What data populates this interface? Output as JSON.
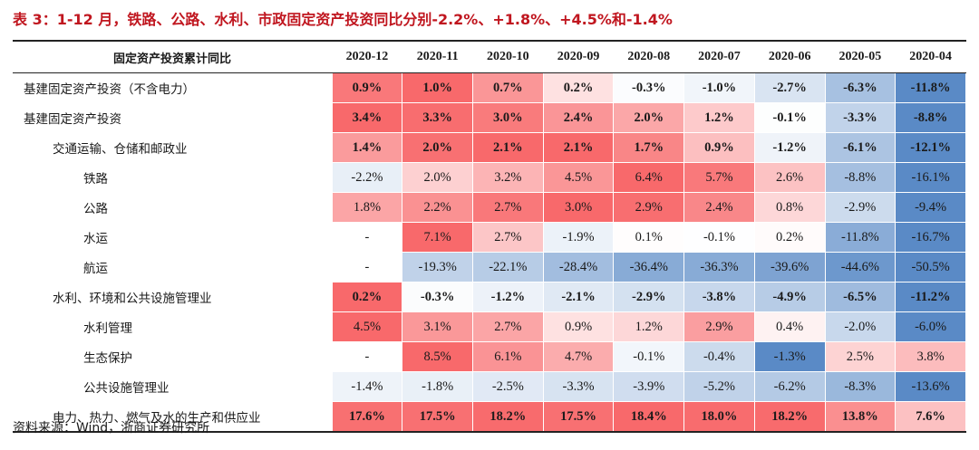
{
  "title": "表 3：1-12 月，铁路、公路、水利、市政固定资产投资同比分别-2.2%、+1.8%、+4.5%和-1.4%",
  "header_label": "固定资产投资累计同比",
  "columns": [
    "2020-12",
    "2020-11",
    "2020-10",
    "2020-09",
    "2020-08",
    "2020-07",
    "2020-06",
    "2020-05",
    "2020-04"
  ],
  "rows": [
    {
      "label": "基建固定资产投资（不含电力）",
      "indent": 0,
      "bold": true,
      "values": [
        "0.9%",
        "1.0%",
        "0.7%",
        "0.2%",
        "-0.3%",
        "-1.0%",
        "-2.7%",
        "-6.3%",
        "-11.8%"
      ],
      "nums": [
        0.9,
        1.0,
        0.7,
        0.2,
        -0.3,
        -1.0,
        -2.7,
        -6.3,
        -11.8
      ]
    },
    {
      "label": "基建固定资产投资",
      "indent": 0,
      "bold": true,
      "values": [
        "3.4%",
        "3.3%",
        "3.0%",
        "2.4%",
        "2.0%",
        "1.2%",
        "-0.1%",
        "-3.3%",
        "-8.8%"
      ],
      "nums": [
        3.4,
        3.3,
        3.0,
        2.4,
        2.0,
        1.2,
        -0.1,
        -3.3,
        -8.8
      ]
    },
    {
      "label": "交通运输、仓储和邮政业",
      "indent": 1,
      "bold": true,
      "values": [
        "1.4%",
        "2.0%",
        "2.1%",
        "2.1%",
        "1.7%",
        "0.9%",
        "-1.2%",
        "-6.1%",
        "-12.1%"
      ],
      "nums": [
        1.4,
        2.0,
        2.1,
        2.1,
        1.7,
        0.9,
        -1.2,
        -6.1,
        -12.1
      ]
    },
    {
      "label": "铁路",
      "indent": 2,
      "bold": false,
      "values": [
        "-2.2%",
        "2.0%",
        "3.2%",
        "4.5%",
        "6.4%",
        "5.7%",
        "2.6%",
        "-8.8%",
        "-16.1%"
      ],
      "nums": [
        -2.2,
        2.0,
        3.2,
        4.5,
        6.4,
        5.7,
        2.6,
        -8.8,
        -16.1
      ]
    },
    {
      "label": "公路",
      "indent": 2,
      "bold": false,
      "values": [
        "1.8%",
        "2.2%",
        "2.7%",
        "3.0%",
        "2.9%",
        "2.4%",
        "0.8%",
        "-2.9%",
        "-9.4%"
      ],
      "nums": [
        1.8,
        2.2,
        2.7,
        3.0,
        2.9,
        2.4,
        0.8,
        -2.9,
        -9.4
      ]
    },
    {
      "label": "水运",
      "indent": 2,
      "bold": false,
      "values": [
        "-",
        "7.1%",
        "2.7%",
        "-1.9%",
        "0.1%",
        "-0.1%",
        "0.2%",
        "-11.8%",
        "-16.7%"
      ],
      "nums": [
        null,
        7.1,
        2.7,
        -1.9,
        0.1,
        -0.1,
        0.2,
        -11.8,
        -16.7
      ]
    },
    {
      "label": "航运",
      "indent": 2,
      "bold": false,
      "values": [
        "-",
        "-19.3%",
        "-22.1%",
        "-28.4%",
        "-36.4%",
        "-36.3%",
        "-39.6%",
        "-44.6%",
        "-50.5%"
      ],
      "nums": [
        null,
        -19.3,
        -22.1,
        -28.4,
        -36.4,
        -36.3,
        -39.6,
        -44.6,
        -50.5
      ]
    },
    {
      "label": "水利、环境和公共设施管理业",
      "indent": 1,
      "bold": true,
      "values": [
        "0.2%",
        "-0.3%",
        "-1.2%",
        "-2.1%",
        "-2.9%",
        "-3.8%",
        "-4.9%",
        "-6.5%",
        "-11.2%"
      ],
      "nums": [
        0.2,
        -0.3,
        -1.2,
        -2.1,
        -2.9,
        -3.8,
        -4.9,
        -6.5,
        -11.2
      ]
    },
    {
      "label": "水利管理",
      "indent": 2,
      "bold": false,
      "values": [
        "4.5%",
        "3.1%",
        "2.7%",
        "0.9%",
        "1.2%",
        "2.9%",
        "0.4%",
        "-2.0%",
        "-6.0%"
      ],
      "nums": [
        4.5,
        3.1,
        2.7,
        0.9,
        1.2,
        2.9,
        0.4,
        -2.0,
        -6.0
      ]
    },
    {
      "label": "生态保护",
      "indent": 2,
      "bold": false,
      "values": [
        "-",
        "8.5%",
        "6.1%",
        "4.7%",
        "-0.1%",
        "-0.4%",
        "-1.3%",
        "2.5%",
        "3.8%"
      ],
      "nums": [
        null,
        8.5,
        6.1,
        4.7,
        -0.1,
        -0.4,
        -1.3,
        2.5,
        3.8
      ]
    },
    {
      "label": "公共设施管理业",
      "indent": 2,
      "bold": false,
      "values": [
        "-1.4%",
        "-1.8%",
        "-2.5%",
        "-3.3%",
        "-3.9%",
        "-5.2%",
        "-6.2%",
        "-8.3%",
        "-13.6%"
      ],
      "nums": [
        -1.4,
        -1.8,
        -2.5,
        -3.3,
        -3.9,
        -5.2,
        -6.2,
        -8.3,
        -13.6
      ]
    },
    {
      "label": "电力、热力、燃气及水的生产和供应业",
      "indent": 1,
      "bold": true,
      "values": [
        "17.6%",
        "17.5%",
        "18.2%",
        "17.5%",
        "18.4%",
        "18.0%",
        "18.2%",
        "13.8%",
        "7.6%"
      ],
      "nums": [
        17.6,
        17.5,
        18.2,
        17.5,
        18.4,
        18.0,
        18.2,
        13.8,
        7.6
      ]
    }
  ],
  "source": "资料来源：Wind，浙商证券研究所",
  "colors": {
    "title": "#c0161f",
    "positive": "#f8696b",
    "negative": "#5a8ac6",
    "neutral": "#ffffff"
  }
}
